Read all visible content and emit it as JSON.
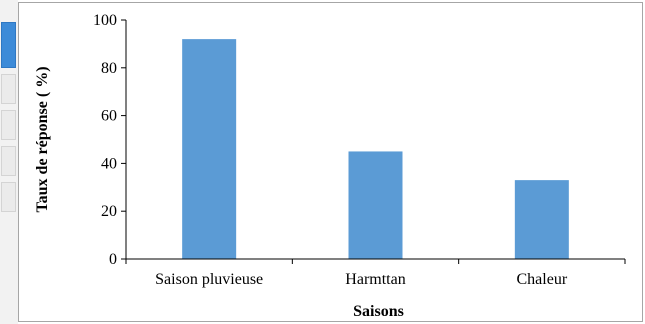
{
  "chart_data": {
    "type": "bar",
    "categories": [
      "Saison pluvieuse",
      "Harmttan",
      "Chaleur"
    ],
    "values": [
      92,
      45,
      33
    ],
    "title": "",
    "xlabel": "Saisons",
    "ylabel": "Taux de réponse ( %)",
    "ylim": [
      0,
      100
    ],
    "yticks": [
      0,
      20,
      40,
      60,
      80,
      100
    ],
    "grid": false,
    "legend": "none",
    "bar_color": "#5b9bd5"
  }
}
